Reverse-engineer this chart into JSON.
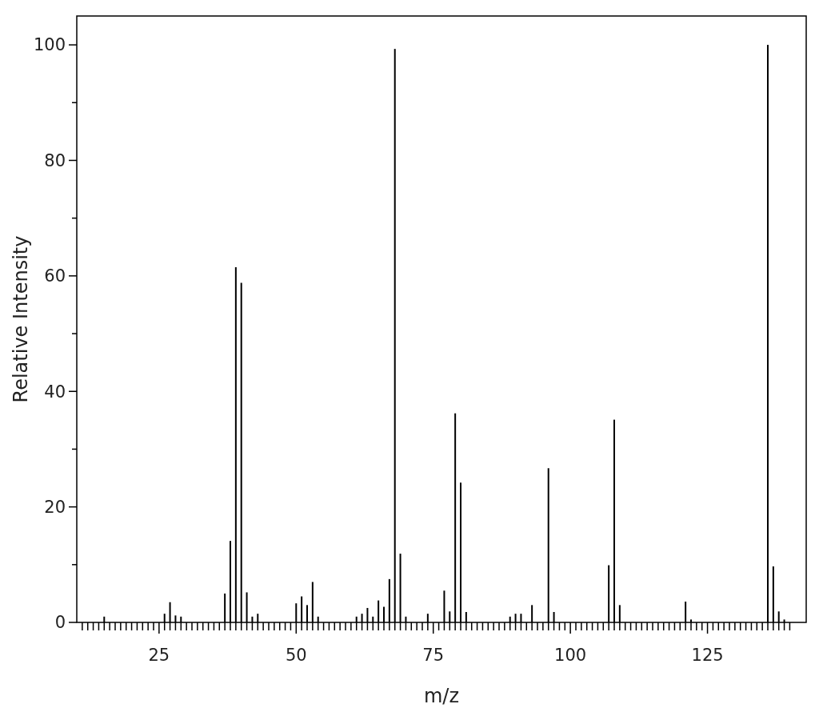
{
  "chart_data": {
    "type": "bar",
    "xlabel": "m/z",
    "ylabel": "Relative Intensity",
    "x": [
      15,
      26,
      27,
      28,
      29,
      37,
      38,
      39,
      40,
      41,
      42,
      43,
      50,
      51,
      52,
      53,
      54,
      61,
      62,
      63,
      64,
      65,
      66,
      67,
      68,
      69,
      70,
      74,
      77,
      78,
      79,
      80,
      81,
      89,
      90,
      91,
      93,
      96,
      97,
      107,
      108,
      109,
      121,
      122,
      136,
      137,
      138,
      139
    ],
    "values": [
      1,
      1.5,
      3.5,
      1.2,
      1,
      5,
      14.1,
      61.5,
      58.8,
      5.2,
      1,
      1.5,
      3.3,
      4.5,
      3,
      7,
      1,
      1,
      1.5,
      2.5,
      1,
      3.8,
      2.7,
      7.5,
      99.3,
      11.9,
      1,
      1.5,
      5.5,
      1.9,
      36.2,
      24.2,
      1.8,
      1,
      1.5,
      1.5,
      3,
      26.7,
      1.8,
      9.9,
      35.1,
      3,
      3.6,
      0.5,
      100,
      9.7,
      1.9,
      0.5
    ],
    "xlim": [
      10,
      143
    ],
    "ylim": [
      0,
      105
    ],
    "xticks": [
      {
        "value": 11,
        "label": null
      },
      {
        "value": 12,
        "label": null
      },
      {
        "value": 13,
        "label": null
      },
      {
        "value": 14,
        "label": null
      },
      {
        "value": 15,
        "label": null
      },
      {
        "value": 16,
        "label": null
      },
      {
        "value": 17,
        "label": null
      },
      {
        "value": 18,
        "label": null
      },
      {
        "value": 19,
        "label": null
      },
      {
        "value": 20,
        "label": null
      },
      {
        "value": 21,
        "label": null
      },
      {
        "value": 22,
        "label": null
      },
      {
        "value": 23,
        "label": null
      },
      {
        "value": 24,
        "label": null
      },
      25,
      {
        "value": 26,
        "label": null
      },
      {
        "value": 27,
        "label": null
      },
      {
        "value": 28,
        "label": null
      },
      {
        "value": 29,
        "label": null
      },
      {
        "value": 30,
        "label": null
      },
      {
        "value": 31,
        "label": null
      },
      {
        "value": 32,
        "label": null
      },
      {
        "value": 33,
        "label": null
      },
      {
        "value": 34,
        "label": null
      },
      {
        "value": 35,
        "label": null
      },
      {
        "value": 36,
        "label": null
      },
      {
        "value": 37,
        "label": null
      },
      {
        "value": 38,
        "label": null
      },
      {
        "value": 39,
        "label": null
      },
      {
        "value": 40,
        "label": null
      },
      {
        "value": 41,
        "label": null
      },
      {
        "value": 42,
        "label": null
      },
      {
        "value": 43,
        "label": null
      },
      {
        "value": 44,
        "label": null
      },
      {
        "value": 45,
        "label": null
      },
      {
        "value": 46,
        "label": null
      },
      {
        "value": 47,
        "label": null
      },
      {
        "value": 48,
        "label": null
      },
      {
        "value": 49,
        "label": null
      },
      50,
      {
        "value": 51,
        "label": null
      },
      {
        "value": 52,
        "label": null
      },
      {
        "value": 53,
        "label": null
      },
      {
        "value": 54,
        "label": null
      },
      {
        "value": 55,
        "label": null
      },
      {
        "value": 56,
        "label": null
      },
      {
        "value": 57,
        "label": null
      },
      {
        "value": 58,
        "label": null
      },
      {
        "value": 59,
        "label": null
      },
      {
        "value": 60,
        "label": null
      },
      {
        "value": 61,
        "label": null
      },
      {
        "value": 62,
        "label": null
      },
      {
        "value": 63,
        "label": null
      },
      {
        "value": 64,
        "label": null
      },
      {
        "value": 65,
        "label": null
      },
      {
        "value": 66,
        "label": null
      },
      {
        "value": 67,
        "label": null
      },
      {
        "value": 68,
        "label": null
      },
      {
        "value": 69,
        "label": null
      },
      {
        "value": 70,
        "label": null
      },
      {
        "value": 71,
        "label": null
      },
      {
        "value": 72,
        "label": null
      },
      {
        "value": 73,
        "label": null
      },
      {
        "value": 74,
        "label": null
      },
      75,
      {
        "value": 76,
        "label": null
      },
      {
        "value": 77,
        "label": null
      },
      {
        "value": 78,
        "label": null
      },
      {
        "value": 79,
        "label": null
      },
      {
        "value": 80,
        "label": null
      },
      {
        "value": 81,
        "label": null
      },
      {
        "value": 82,
        "label": null
      },
      {
        "value": 83,
        "label": null
      },
      {
        "value": 84,
        "label": null
      },
      {
        "value": 85,
        "label": null
      },
      {
        "value": 86,
        "label": null
      },
      {
        "value": 87,
        "label": null
      },
      {
        "value": 88,
        "label": null
      },
      {
        "value": 89,
        "label": null
      },
      {
        "value": 90,
        "label": null
      },
      {
        "value": 91,
        "label": null
      },
      {
        "value": 92,
        "label": null
      },
      {
        "value": 93,
        "label": null
      },
      {
        "value": 94,
        "label": null
      },
      {
        "value": 95,
        "label": null
      },
      {
        "value": 96,
        "label": null
      },
      {
        "value": 97,
        "label": null
      },
      {
        "value": 98,
        "label": null
      },
      {
        "value": 99,
        "label": null
      },
      100,
      {
        "value": 101,
        "label": null
      },
      {
        "value": 102,
        "label": null
      },
      {
        "value": 103,
        "label": null
      },
      {
        "value": 104,
        "label": null
      },
      {
        "value": 105,
        "label": null
      },
      {
        "value": 106,
        "label": null
      },
      {
        "value": 107,
        "label": null
      },
      {
        "value": 108,
        "label": null
      },
      {
        "value": 109,
        "label": null
      },
      {
        "value": 110,
        "label": null
      },
      {
        "value": 111,
        "label": null
      },
      {
        "value": 112,
        "label": null
      },
      {
        "value": 113,
        "label": null
      },
      {
        "value": 114,
        "label": null
      },
      {
        "value": 115,
        "label": null
      },
      {
        "value": 116,
        "label": null
      },
      {
        "value": 117,
        "label": null
      },
      {
        "value": 118,
        "label": null
      },
      {
        "value": 119,
        "label": null
      },
      {
        "value": 120,
        "label": null
      },
      {
        "value": 121,
        "label": null
      },
      {
        "value": 122,
        "label": null
      },
      {
        "value": 123,
        "label": null
      },
      {
        "value": 124,
        "label": null
      },
      125,
      {
        "value": 126,
        "label": null
      },
      {
        "value": 127,
        "label": null
      },
      {
        "value": 128,
        "label": null
      },
      {
        "value": 129,
        "label": null
      },
      {
        "value": 130,
        "label": null
      },
      {
        "value": 131,
        "label": null
      },
      {
        "value": 132,
        "label": null
      },
      {
        "value": 133,
        "label": null
      },
      {
        "value": 134,
        "label": null
      },
      {
        "value": 135,
        "label": null
      },
      {
        "value": 136,
        "label": null
      },
      {
        "value": 137,
        "label": null
      },
      {
        "value": 138,
        "label": null
      },
      {
        "value": 139,
        "label": null
      },
      {
        "value": 140,
        "label": null
      }
    ],
    "yticks": [
      0,
      {
        "value": 10,
        "label": null
      },
      20,
      {
        "value": 30,
        "label": null
      },
      40,
      {
        "value": 50,
        "label": null
      },
      60,
      {
        "value": 70,
        "label": null
      },
      80,
      {
        "value": 90,
        "label": null
      },
      100
    ],
    "color": "#000000"
  }
}
